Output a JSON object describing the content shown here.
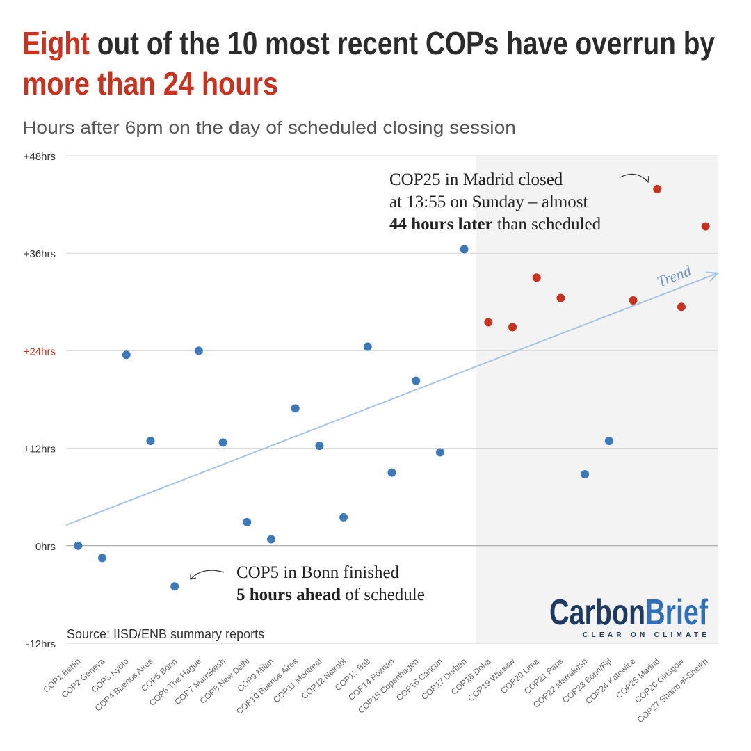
{
  "chart_data": {
    "type": "scatter",
    "title": {
      "highlight_start": "Eight",
      "middle": "out of the 10 most recent COPs have overrun by",
      "highlight_end": "more than 24 hours"
    },
    "subtitle": "Hours after 6pm on the day of scheduled closing session",
    "categories": [
      "COP1 Berlin",
      "COP2 Geneva",
      "COP3 Kyoto",
      "COP4 Buenos Aires",
      "COP5 Bonn",
      "COP6 The Hague",
      "COP7 Marrakesh",
      "COP8 New Delhi",
      "COP9 Milan",
      "COP10 Buenos Aires",
      "COP11 Montreal",
      "COP12 Nairobi",
      "COP13 Bali",
      "COP14 Poznan",
      "COP15 Copenhagen",
      "COP16 Cancun",
      "COP17 Durban",
      "COP18 Doha",
      "COP19 Warsaw",
      "COP20 Lima",
      "COP21 Paris",
      "COP22 Marrakesh",
      "COP23 Bonn/Fiji",
      "COP24 Katowice",
      "COP25 Madrid",
      "COP26 Glasgow",
      "COP27 Sharm el-Sheikh"
    ],
    "values": [
      0,
      -1.5,
      23.5,
      12.9,
      -5,
      24,
      12.7,
      2.9,
      0.8,
      16.9,
      12.3,
      3.5,
      24.5,
      9,
      20.3,
      11.5,
      36.5,
      27.5,
      26.9,
      33,
      30.5,
      8.8,
      12.9,
      30.2,
      43.9,
      29.4,
      39.3
    ],
    "colors": [
      "#3d78b8",
      "#3d78b8",
      "#3d78b8",
      "#3d78b8",
      "#3d78b8",
      "#3d78b8",
      "#3d78b8",
      "#3d78b8",
      "#3d78b8",
      "#3d78b8",
      "#3d78b8",
      "#3d78b8",
      "#3d78b8",
      "#3d78b8",
      "#3d78b8",
      "#3d78b8",
      "#3d78b8",
      "#c8321e",
      "#c8321e",
      "#c8321e",
      "#c8321e",
      "#3d78b8",
      "#3d78b8",
      "#c8321e",
      "#c8321e",
      "#c8321e",
      "#c8321e"
    ],
    "ylim": [
      -12,
      48
    ],
    "yticks": [
      {
        "value": -12,
        "label": "-12hrs"
      },
      {
        "value": 0,
        "label": "0hrs"
      },
      {
        "value": 12,
        "label": "+12hrs"
      },
      {
        "value": 24,
        "label": "+24hrs",
        "color": "#c8321e"
      },
      {
        "value": 36,
        "label": "+36hrs"
      },
      {
        "value": 48,
        "label": "+48hrs"
      }
    ],
    "grid": true,
    "trend_label": "Trend",
    "annotations": {
      "cop25": {
        "line1": "COP25 in Madrid closed",
        "line2": "at 13:55 on Sunday – almost",
        "bold": "44 hours later",
        "rest": "than scheduled"
      },
      "cop5": {
        "line1": "COP5 in Bonn finished",
        "bold": "5 hours ahead",
        "rest": "of schedule"
      }
    },
    "source": "Source: IISD/ENB summary reports",
    "logo": {
      "part1": "Carbon",
      "part2": "Brief",
      "tagline": "CLEAR ON CLIMATE"
    }
  }
}
